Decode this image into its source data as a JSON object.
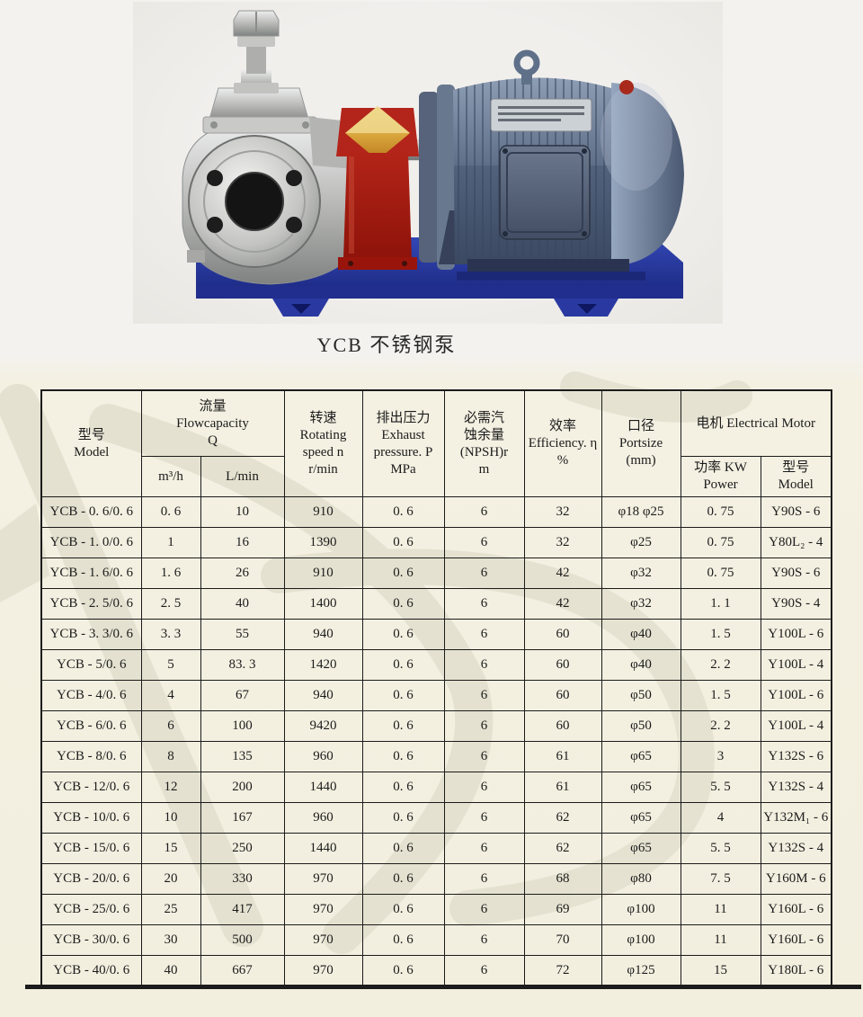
{
  "page": {
    "caption": "YCB 不锈钢泵"
  },
  "photo": {
    "label": "pump-photo",
    "parts": [
      "gear-pump",
      "safety-valve",
      "red-bearing-bracket",
      "coupling-shaft",
      "electrical-motor",
      "blue-base-plate"
    ]
  },
  "colors": {
    "paper": "#f3efdf",
    "table_border": "#1b1b1b",
    "watermark": "#e3e0cf",
    "base_blue": "#2b3aa6",
    "bracket_red": "#a81c12",
    "motor_blue_gray": "#6e7f98",
    "pump_silver": "#c0c1bf"
  },
  "table": {
    "columns": {
      "model": {
        "zh": "型号",
        "en": "Model"
      },
      "flow": {
        "zh": "流量",
        "en": "Flowcapacity",
        "sym": "Q",
        "sub_m3h": "m³/h",
        "sub_lmin": "L/min"
      },
      "speed": {
        "zh": "转速",
        "en1": "Rotating",
        "en2": "speed n",
        "en3": "r/min"
      },
      "pressure": {
        "zh": "排出压力",
        "en1": "Exhaust",
        "en2": "pressure. P",
        "en3": "MPa"
      },
      "npsh": {
        "zh1": "必需汽",
        "zh2": "蚀余量",
        "en1": "(NPSH)r",
        "en2": "m"
      },
      "efficiency": {
        "zh": "效率",
        "en1": "Efficiency. η",
        "en2": "%"
      },
      "portsize": {
        "zh": "口径",
        "en1": "Portsize",
        "en2": "(mm)"
      },
      "motor": {
        "title": "电机 Electrical Motor",
        "power_zh": "功率 KW",
        "power_en": "Power",
        "model_zh": "型号",
        "model_en": "Model"
      }
    },
    "rows": [
      [
        "YCB - 0. 6/0. 6",
        "0. 6",
        "10",
        "910",
        "0. 6",
        "6",
        "32",
        "φ18  φ25",
        "0. 75",
        "Y90S - 6"
      ],
      [
        "YCB - 1. 0/0. 6",
        "1",
        "16",
        "1390",
        "0. 6",
        "6",
        "32",
        "φ25",
        "0. 75",
        "Y80L₂ - 4"
      ],
      [
        "YCB - 1. 6/0. 6",
        "1. 6",
        "26",
        "910",
        "0. 6",
        "6",
        "42",
        "φ32",
        "0. 75",
        "Y90S - 6"
      ],
      [
        "YCB - 2. 5/0. 6",
        "2. 5",
        "40",
        "1400",
        "0. 6",
        "6",
        "42",
        "φ32",
        "1. 1",
        "Y90S - 4"
      ],
      [
        "YCB - 3. 3/0. 6",
        "3. 3",
        "55",
        "940",
        "0. 6",
        "6",
        "60",
        "φ40",
        "1. 5",
        "Y100L - 6"
      ],
      [
        "YCB - 5/0. 6",
        "5",
        "83. 3",
        "1420",
        "0. 6",
        "6",
        "60",
        "φ40",
        "2. 2",
        "Y100L - 4"
      ],
      [
        "YCB - 4/0. 6",
        "4",
        "67",
        "940",
        "0. 6",
        "6",
        "60",
        "φ50",
        "1. 5",
        "Y100L - 6"
      ],
      [
        "YCB - 6/0. 6",
        "6",
        "100",
        "9420",
        "0. 6",
        "6",
        "60",
        "φ50",
        "2. 2",
        "Y100L - 4"
      ],
      [
        "YCB - 8/0. 6",
        "8",
        "135",
        "960",
        "0. 6",
        "6",
        "61",
        "φ65",
        "3",
        "Y132S - 6"
      ],
      [
        "YCB - 12/0. 6",
        "12",
        "200",
        "1440",
        "0. 6",
        "6",
        "61",
        "φ65",
        "5. 5",
        "Y132S - 4"
      ],
      [
        "YCB - 10/0. 6",
        "10",
        "167",
        "960",
        "0. 6",
        "6",
        "62",
        "φ65",
        "4",
        "Y132M₁ - 6"
      ],
      [
        "YCB - 15/0. 6",
        "15",
        "250",
        "1440",
        "0. 6",
        "6",
        "62",
        "φ65",
        "5. 5",
        "Y132S - 4"
      ],
      [
        "YCB - 20/0. 6",
        "20",
        "330",
        "970",
        "0. 6",
        "6",
        "68",
        "φ80",
        "7. 5",
        "Y160M - 6"
      ],
      [
        "YCB - 25/0. 6",
        "25",
        "417",
        "970",
        "0. 6",
        "6",
        "69",
        "φ100",
        "11",
        "Y160L - 6"
      ],
      [
        "YCB - 30/0. 6",
        "30",
        "500",
        "970",
        "0. 6",
        "6",
        "70",
        "φ100",
        "11",
        "Y160L - 6"
      ],
      [
        "YCB - 40/0. 6",
        "40",
        "667",
        "970",
        "0. 6",
        "6",
        "72",
        "φ125",
        "15",
        "Y180L - 6"
      ]
    ]
  }
}
